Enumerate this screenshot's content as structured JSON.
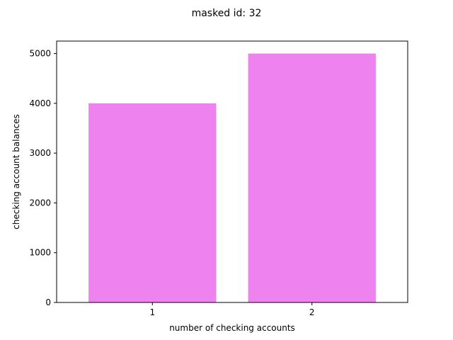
{
  "chart_data": {
    "type": "bar",
    "title": "masked id: 32",
    "xlabel": "number of checking accounts",
    "ylabel": "checking account balances",
    "categories": [
      "1",
      "2"
    ],
    "values": [
      4000,
      5000
    ],
    "ylim": [
      0,
      5250
    ],
    "yticks": [
      0,
      1000,
      2000,
      3000,
      4000,
      5000
    ],
    "grid": false,
    "bar_color": "#ee82ee"
  }
}
